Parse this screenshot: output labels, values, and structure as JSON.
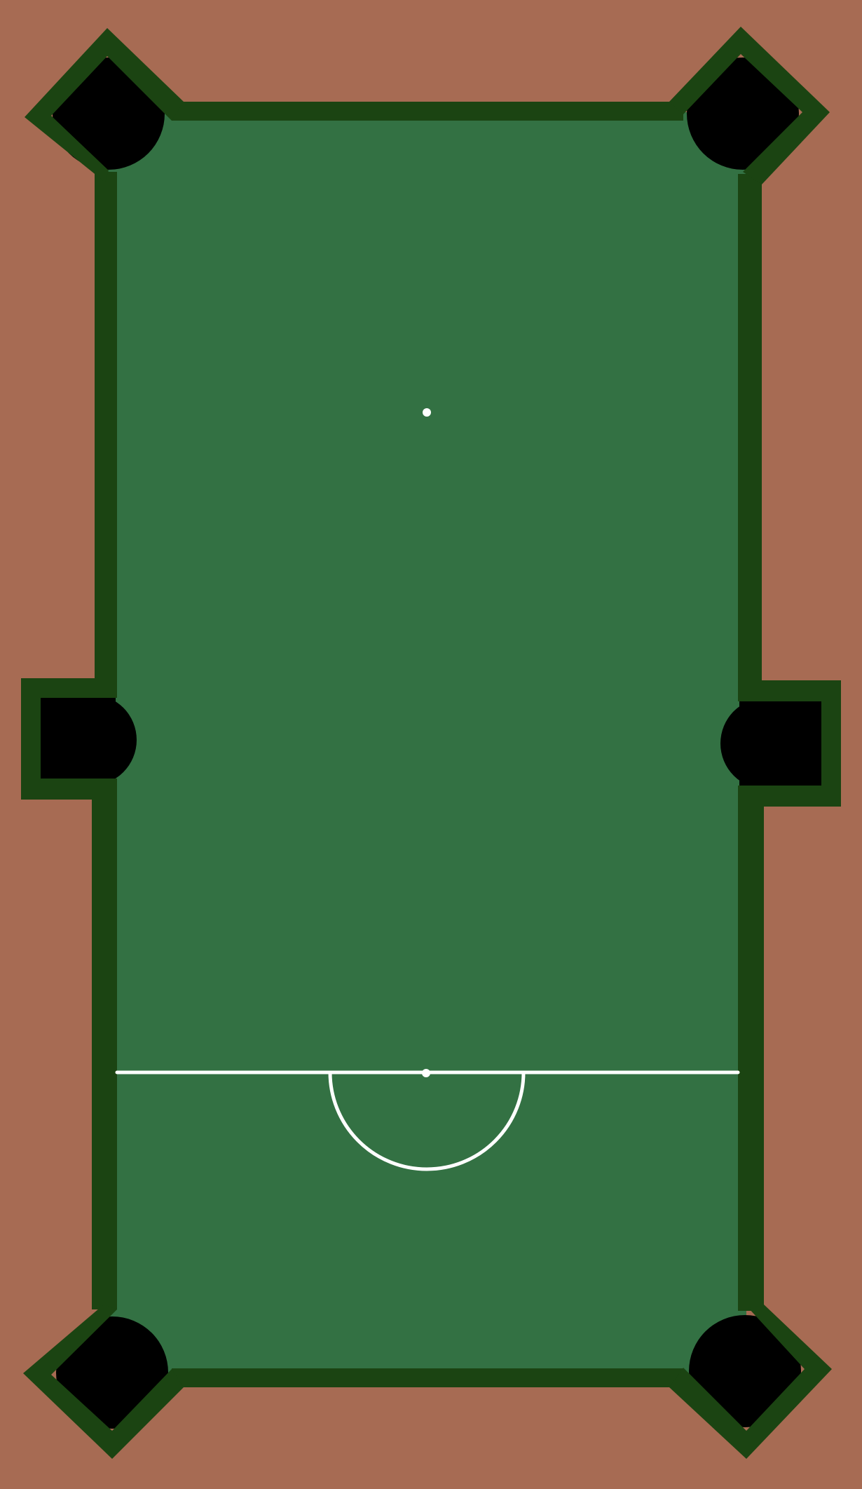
{
  "game": {
    "kind": "pool-table",
    "colors": {
      "floor": "#a76b53",
      "felt": "#337143",
      "rail": "#1b4412",
      "pocket": "#000000",
      "markings": "#ffffff"
    },
    "pockets": [
      {
        "id": "top-left",
        "type": "corner"
      },
      {
        "id": "top-right",
        "type": "corner"
      },
      {
        "id": "middle-left",
        "type": "side"
      },
      {
        "id": "middle-right",
        "type": "side"
      },
      {
        "id": "bottom-left",
        "type": "corner"
      },
      {
        "id": "bottom-right",
        "type": "corner"
      }
    ],
    "markings": [
      "foot-spot",
      "baulk-line",
      "baulk-spot",
      "semicircle-d"
    ]
  }
}
